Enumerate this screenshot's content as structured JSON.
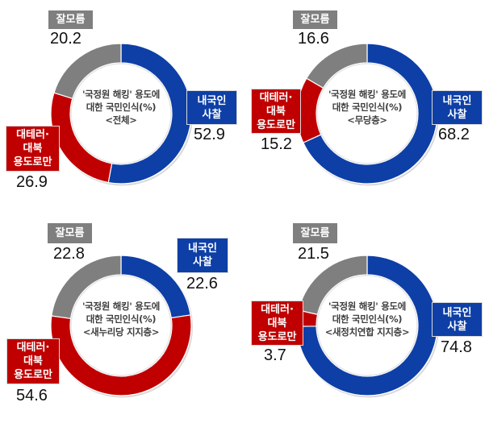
{
  "colors": {
    "domestic_surveillance": "#0d3fa6",
    "counter_terror_only": "#c00000",
    "dont_know": "#7f7f7f",
    "separator": "#ffffff"
  },
  "center_title": {
    "line1": "'국정원 해킹' 용도에",
    "line2": "대한 국민인식(%)"
  },
  "labels": {
    "domestic_surveillance": [
      "내국인",
      "사찰"
    ],
    "counter_terror_only": [
      "대테러·",
      "대북",
      "용도로만"
    ],
    "dont_know": [
      "잘모름"
    ]
  },
  "panels": [
    {
      "group": "<전체>",
      "domestic_surveillance": "52.9",
      "counter_terror_only": "26.9",
      "dont_know": "20.2"
    },
    {
      "group": "<무당층>",
      "domestic_surveillance": "68.2",
      "counter_terror_only": "15.2",
      "dont_know": "16.6"
    },
    {
      "group": "<새누리당 지지층>",
      "domestic_surveillance": "22.6",
      "counter_terror_only": "54.6",
      "dont_know": "22.8"
    },
    {
      "group": "<새정치연합 지지층>",
      "domestic_surveillance": "74.8",
      "counter_terror_only": "3.7",
      "dont_know": "21.5"
    }
  ],
  "chart_data": [
    {
      "type": "pie",
      "subtype": "donut",
      "title": "'국정원 해킹' 용도에 대한 국민인식(%) <전체>",
      "categories": [
        "내국인 사찰",
        "대테러·대북 용도로만",
        "잘모름"
      ],
      "values": [
        52.9,
        26.9,
        20.2
      ],
      "start_angle": "12 o'clock, clockwise"
    },
    {
      "type": "pie",
      "subtype": "donut",
      "title": "'국정원 해킹' 용도에 대한 국민인식(%) <무당층>",
      "categories": [
        "내국인 사찰",
        "대테러·대북 용도로만",
        "잘모름"
      ],
      "values": [
        68.2,
        15.2,
        16.6
      ],
      "start_angle": "12 o'clock, clockwise"
    },
    {
      "type": "pie",
      "subtype": "donut",
      "title": "'국정원 해킹' 용도에 대한 국민인식(%) <새누리당 지지층>",
      "categories": [
        "내국인 사찰",
        "대테러·대북 용도로만",
        "잘모름"
      ],
      "values": [
        22.6,
        54.6,
        22.8
      ],
      "start_angle": "12 o'clock, clockwise"
    },
    {
      "type": "pie",
      "subtype": "donut",
      "title": "'국정원 해킹' 용도에 대한 국민인식(%) <새정치연합 지지층>",
      "categories": [
        "내국인 사찰",
        "대테러·대북 용도로만",
        "잘모름"
      ],
      "values": [
        74.8,
        3.7,
        21.5
      ],
      "start_angle": "12 o'clock, clockwise"
    }
  ]
}
